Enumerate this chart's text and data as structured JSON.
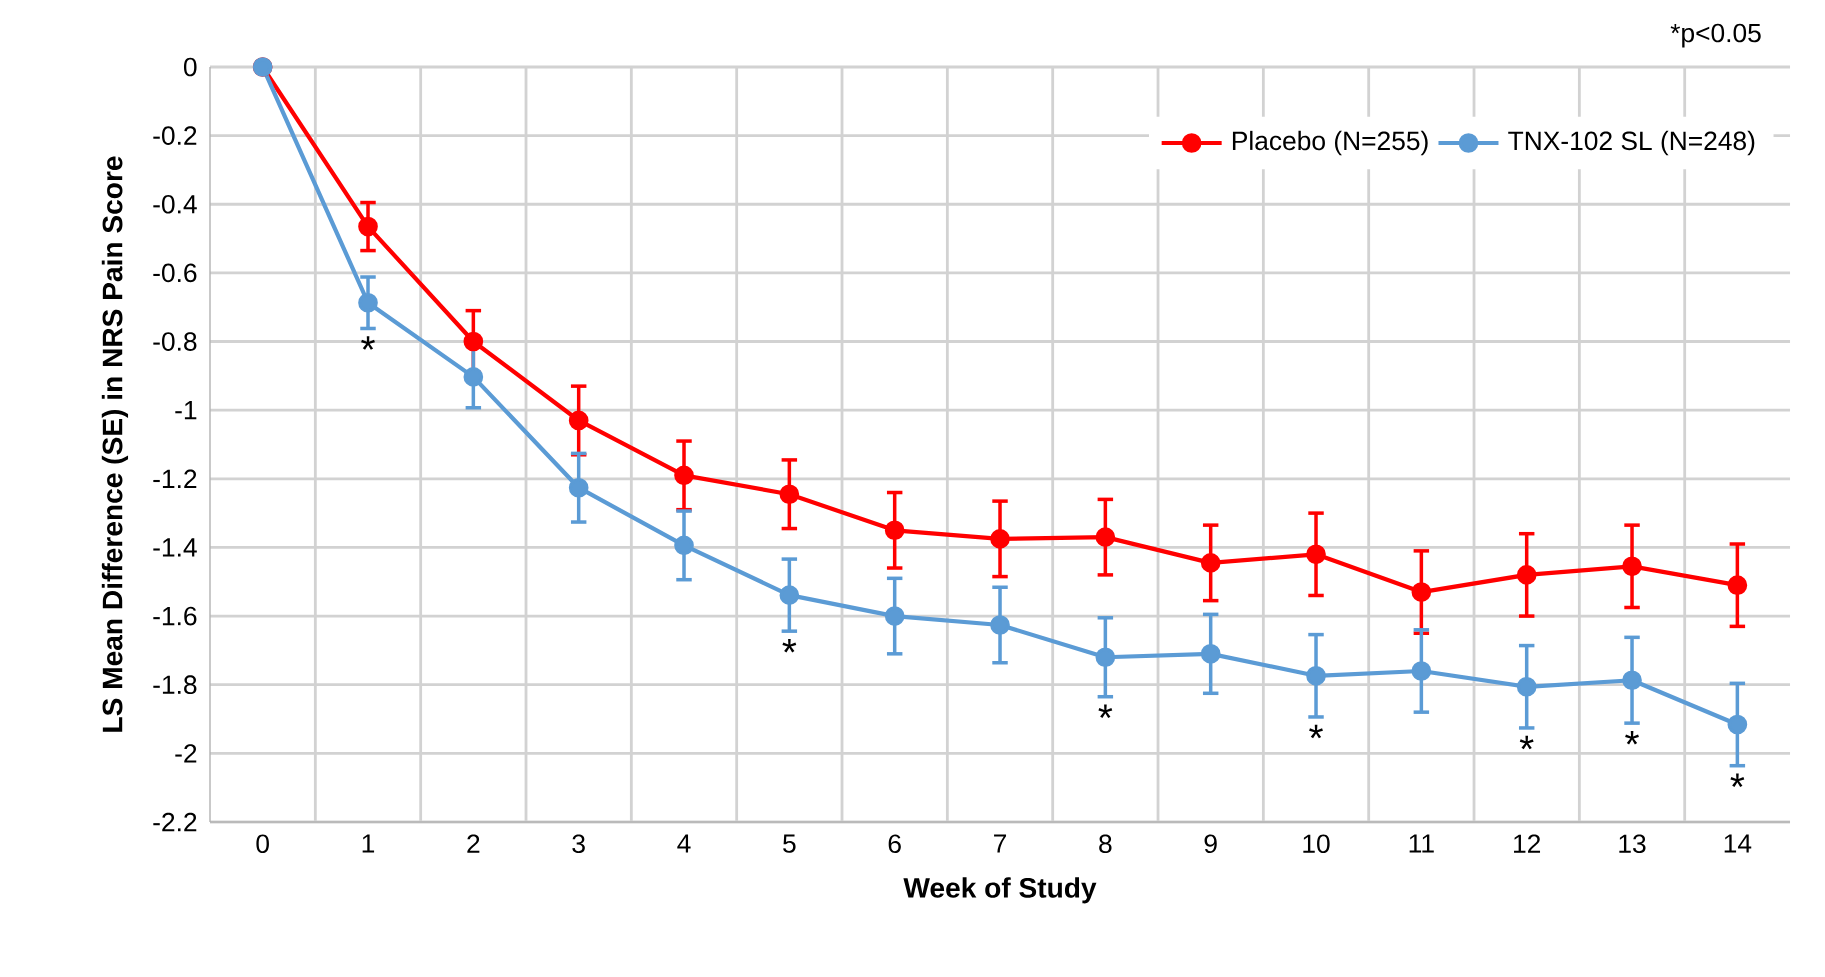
{
  "chart_data": {
    "type": "line",
    "xlabel": "Week of Study",
    "ylabel": "LS Mean Difference (SE) in NRS Pain Score",
    "categories": [
      "0",
      "1",
      "2",
      "3",
      "4",
      "5",
      "6",
      "7",
      "8",
      "9",
      "10",
      "11",
      "12",
      "13",
      "14"
    ],
    "series": [
      {
        "name": "Placebo (N=255)",
        "color": "#ff0000",
        "values": [
          0,
          -0.465,
          -0.8,
          -1.03,
          -1.19,
          -1.245,
          -1.35,
          -1.375,
          -1.37,
          -1.445,
          -1.42,
          -1.53,
          -1.48,
          -1.455,
          -1.51
        ],
        "errors": [
          null,
          0.07,
          0.09,
          0.1,
          0.1,
          0.1,
          0.11,
          0.11,
          0.11,
          0.11,
          0.12,
          0.12,
          0.12,
          0.12,
          0.12
        ]
      },
      {
        "name": "TNX-102 SL (N=248)",
        "color": "#5b9bd5",
        "values": [
          0,
          -0.687,
          -0.903,
          -1.226,
          -1.394,
          -1.539,
          -1.6,
          -1.626,
          -1.72,
          -1.71,
          -1.774,
          -1.76,
          -1.806,
          -1.787,
          -1.916
        ],
        "errors": [
          null,
          0.075,
          0.09,
          0.1,
          0.1,
          0.105,
          0.11,
          0.11,
          0.115,
          0.115,
          0.12,
          0.12,
          0.12,
          0.125,
          0.12
        ]
      }
    ],
    "ylim": [
      -2.2,
      0
    ],
    "yticks": [
      -2.2,
      -2,
      -1.8,
      -1.6,
      -1.4,
      -1.2,
      -1,
      -0.8,
      -0.6,
      -0.4,
      -0.2,
      0
    ],
    "grid": true,
    "legend": "top right",
    "marker": "circle",
    "line_style": "solid",
    "annotations": [
      "*p<0.05",
      {
        "text": "*",
        "x": "1",
        "y": -0.687
      },
      {
        "text": "*",
        "x": "5",
        "y": -1.539
      },
      {
        "text": "*",
        "x": "8",
        "y": -1.72
      },
      {
        "text": "*",
        "x": "10",
        "y": -1.774
      },
      {
        "text": "*",
        "x": "12",
        "y": -1.806
      },
      {
        "text": "*",
        "x": "13",
        "y": -1.787
      },
      {
        "text": "*",
        "x": "14",
        "y": -1.916
      }
    ]
  }
}
